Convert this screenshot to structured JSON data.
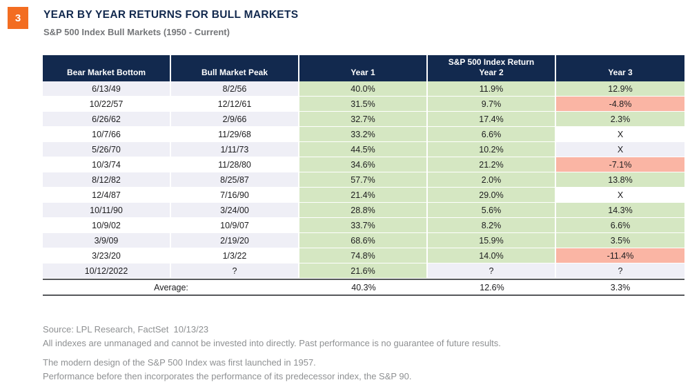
{
  "badge": {
    "label": "3"
  },
  "title": "YEAR BY YEAR RETURNS FOR BULL MARKETS",
  "subtitle": "S&P 500 Index Bull Markets (1950 - Current)",
  "colors": {
    "navy": "#12294e",
    "green": "#d5e7c2",
    "red": "#fab5a4",
    "lavender": "#efeff6",
    "orange": "#f36d21",
    "avgborder": "#55575a",
    "text": "#1c1c1e",
    "footer_gray": "#8e9092",
    "subtitle_gray": "#747679"
  },
  "chart_data": {
    "type": "table",
    "title": "YEAR BY YEAR RETURNS FOR BULL MARKETS",
    "subtitle": "S&P 500 Index Bull Markets (1950 - Current)",
    "columns": [
      "Bear Market Bottom",
      "Bull Market Peak",
      "Year 1",
      "S&P 500 Index Return Year 2",
      "Year 3"
    ],
    "header_lines": [
      [
        "",
        "Bear Market Bottom"
      ],
      [
        "",
        "Bull Market Peak"
      ],
      [
        "",
        "Year 1"
      ],
      [
        "S&P 500 Index Return",
        "Year 2"
      ],
      [
        "",
        "Year 3"
      ]
    ],
    "cell_color_coding": {
      "pos": "green",
      "neg": "red",
      "na": "row-background"
    },
    "rows": [
      {
        "bottom": "6/13/49",
        "peak": "8/2/56",
        "year1": {
          "v": "40.0%",
          "s": "pos"
        },
        "year2": {
          "v": "11.9%",
          "s": "pos"
        },
        "year3": {
          "v": "12.9%",
          "s": "pos"
        }
      },
      {
        "bottom": "10/22/57",
        "peak": "12/12/61",
        "year1": {
          "v": "31.5%",
          "s": "pos"
        },
        "year2": {
          "v": "9.7%",
          "s": "pos"
        },
        "year3": {
          "v": "-4.8%",
          "s": "neg"
        }
      },
      {
        "bottom": "6/26/62",
        "peak": "2/9/66",
        "year1": {
          "v": "32.7%",
          "s": "pos"
        },
        "year2": {
          "v": "17.4%",
          "s": "pos"
        },
        "year3": {
          "v": "2.3%",
          "s": "pos"
        }
      },
      {
        "bottom": "10/7/66",
        "peak": "11/29/68",
        "year1": {
          "v": "33.2%",
          "s": "pos"
        },
        "year2": {
          "v": "6.6%",
          "s": "pos"
        },
        "year3": {
          "v": "X",
          "s": "na"
        }
      },
      {
        "bottom": "5/26/70",
        "peak": "1/11/73",
        "year1": {
          "v": "44.5%",
          "s": "pos"
        },
        "year2": {
          "v": "10.2%",
          "s": "pos"
        },
        "year3": {
          "v": "X",
          "s": "na"
        }
      },
      {
        "bottom": "10/3/74",
        "peak": "11/28/80",
        "year1": {
          "v": "34.6%",
          "s": "pos"
        },
        "year2": {
          "v": "21.2%",
          "s": "pos"
        },
        "year3": {
          "v": "-7.1%",
          "s": "neg"
        }
      },
      {
        "bottom": "8/12/82",
        "peak": "8/25/87",
        "year1": {
          "v": "57.7%",
          "s": "pos"
        },
        "year2": {
          "v": "2.0%",
          "s": "pos"
        },
        "year3": {
          "v": "13.8%",
          "s": "pos"
        }
      },
      {
        "bottom": "12/4/87",
        "peak": "7/16/90",
        "year1": {
          "v": "21.4%",
          "s": "pos"
        },
        "year2": {
          "v": "29.0%",
          "s": "pos"
        },
        "year3": {
          "v": "X",
          "s": "na"
        }
      },
      {
        "bottom": "10/11/90",
        "peak": "3/24/00",
        "year1": {
          "v": "28.8%",
          "s": "pos"
        },
        "year2": {
          "v": "5.6%",
          "s": "pos"
        },
        "year3": {
          "v": "14.3%",
          "s": "pos"
        }
      },
      {
        "bottom": "10/9/02",
        "peak": "10/9/07",
        "year1": {
          "v": "33.7%",
          "s": "pos"
        },
        "year2": {
          "v": "8.2%",
          "s": "pos"
        },
        "year3": {
          "v": "6.6%",
          "s": "pos"
        }
      },
      {
        "bottom": "3/9/09",
        "peak": "2/19/20",
        "year1": {
          "v": "68.6%",
          "s": "pos"
        },
        "year2": {
          "v": "15.9%",
          "s": "pos"
        },
        "year3": {
          "v": "3.5%",
          "s": "pos"
        }
      },
      {
        "bottom": "3/23/20",
        "peak": "1/3/22",
        "year1": {
          "v": "74.8%",
          "s": "pos"
        },
        "year2": {
          "v": "14.0%",
          "s": "pos"
        },
        "year3": {
          "v": "-11.4%",
          "s": "neg"
        }
      },
      {
        "bottom": "10/12/2022",
        "peak": "?",
        "year1": {
          "v": "21.6%",
          "s": "pos"
        },
        "year2": {
          "v": "?",
          "s": "na"
        },
        "year3": {
          "v": "?",
          "s": "na"
        }
      }
    ],
    "average": {
      "label": "Average:",
      "year1": "40.3%",
      "year2": "12.6%",
      "year3": "3.3%"
    }
  },
  "footer": {
    "lines": [
      "Source: LPL Research, FactSet  10/13/23",
      "All indexes are unmanaged and cannot be invested into directly. Past performance is no guarantee of future results.",
      "The modern design of the S&P 500 Index was first launched in 1957.",
      "Performance before then incorporates the performance of its predecessor index, the S&P 90."
    ]
  }
}
